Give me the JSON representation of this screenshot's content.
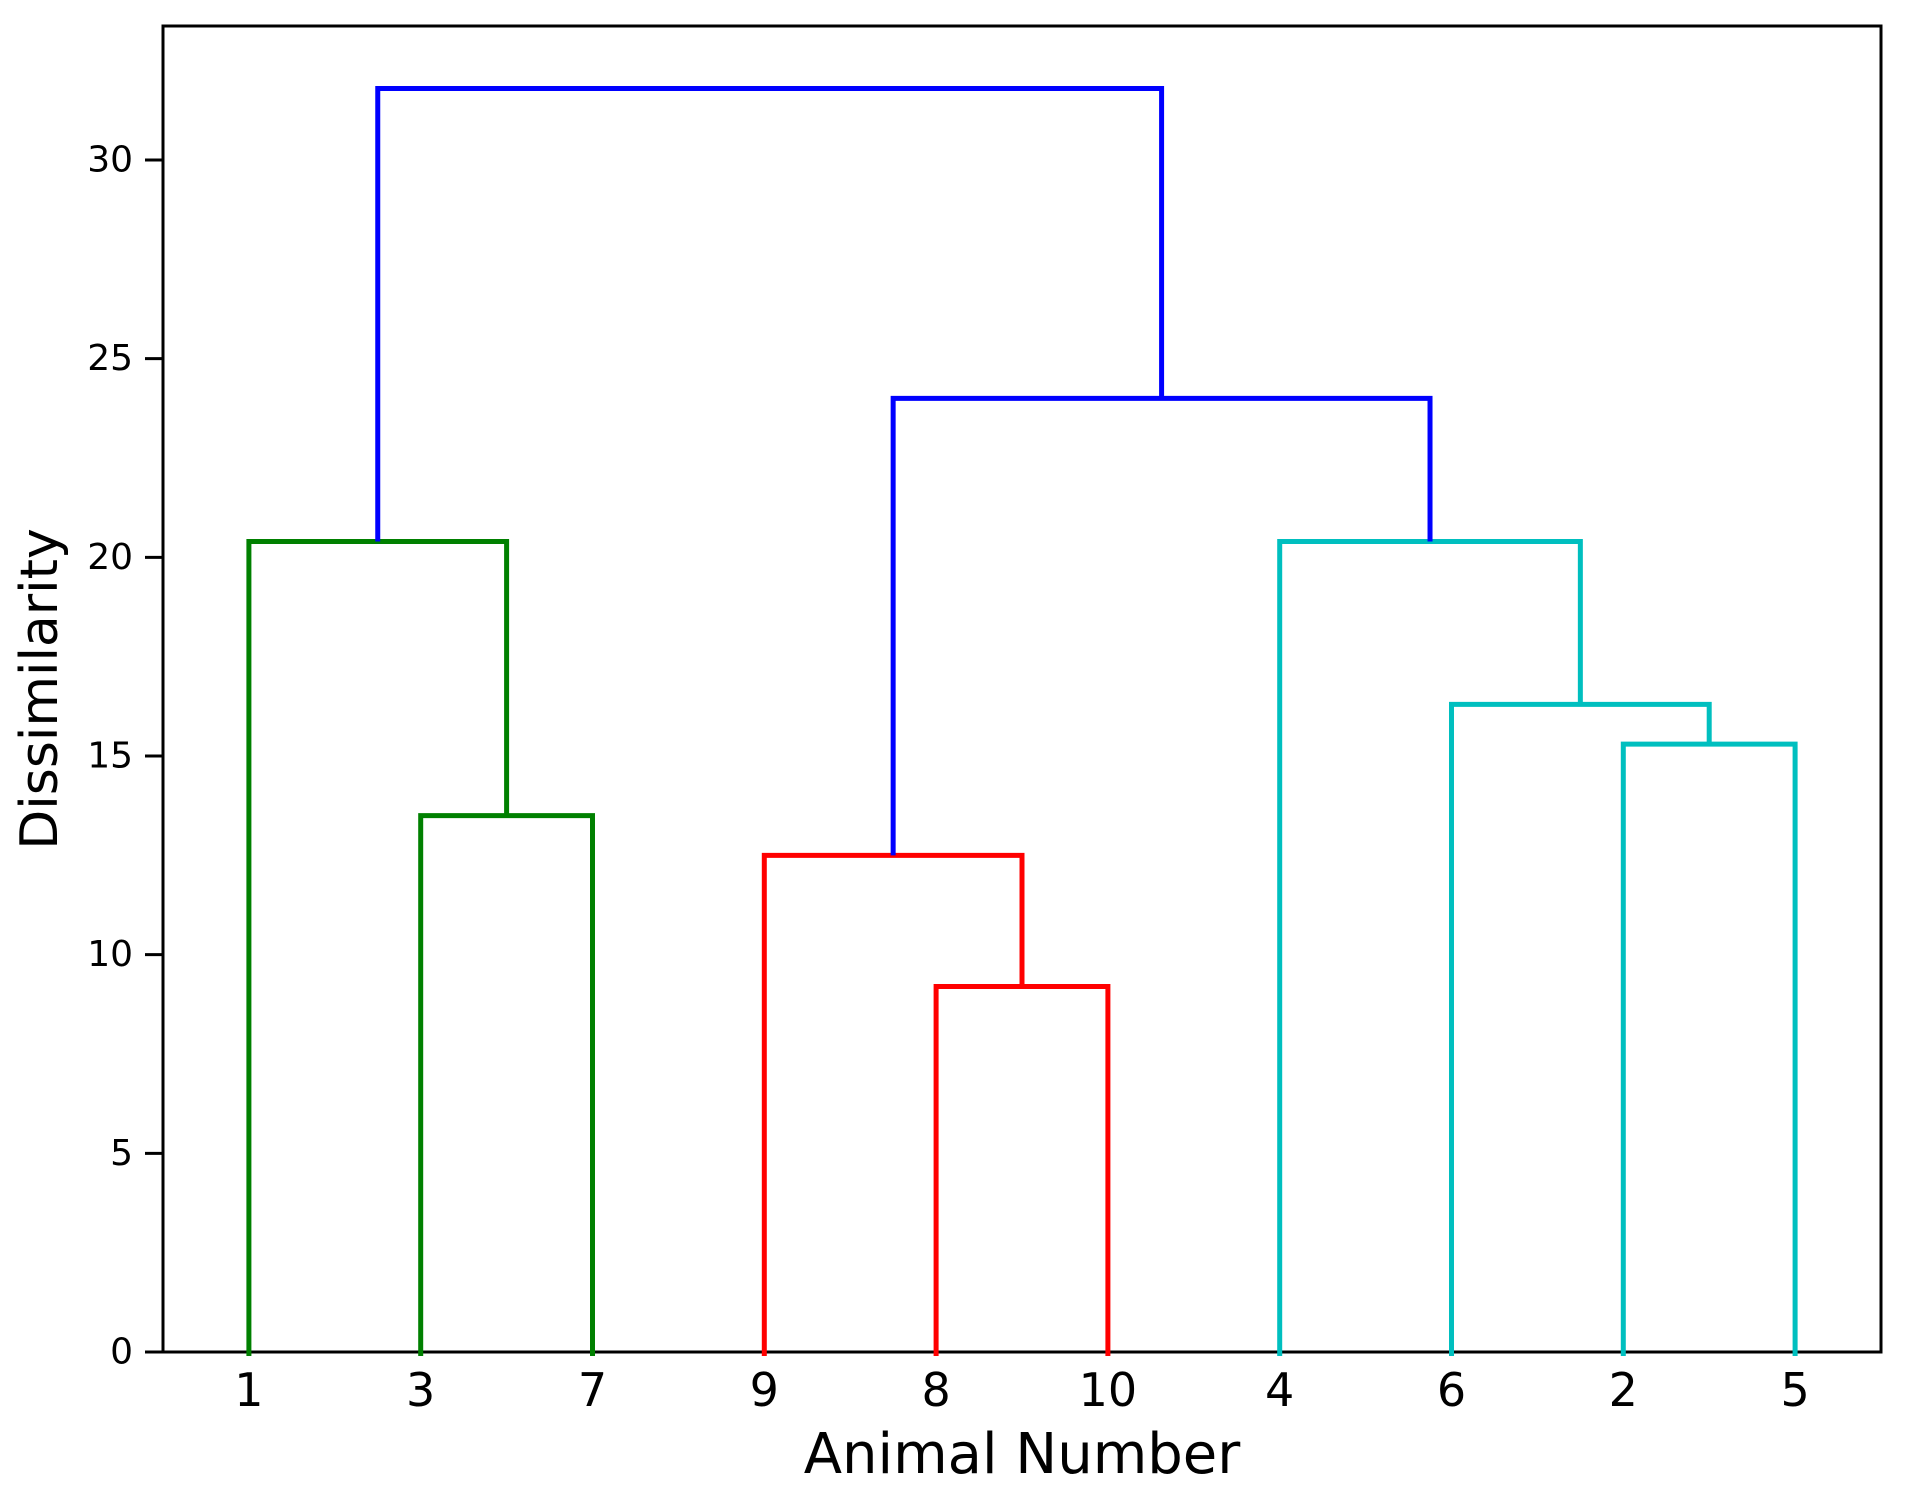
{
  "figure": {
    "background_color": "#ffffff",
    "axis_color": "#000000"
  },
  "chart_data": {
    "type": "dendrogram",
    "title": "",
    "xlabel": "Animal Number",
    "ylabel": "Dissimilarity",
    "leaf_labels": [
      "1",
      "3",
      "7",
      "9",
      "8",
      "10",
      "4",
      "6",
      "2",
      "5"
    ],
    "yticks": [
      0,
      5,
      10,
      15,
      20,
      25,
      30
    ],
    "ylim": [
      0,
      33.4
    ],
    "grid": false,
    "legend": "none",
    "colors": {
      "cluster_green": "#008000",
      "cluster_red": "#ff0000",
      "cluster_cyan": "#00bfbf",
      "above_threshold_blue": "#0000ff"
    },
    "merges": [
      {
        "name": "3+7",
        "left": "leaf:1",
        "right": "leaf:2",
        "height": 13.5,
        "color": "#008000"
      },
      {
        "name": "1+(3,7)",
        "left": "leaf:0",
        "right": "node:0",
        "height": 20.4,
        "color": "#008000"
      },
      {
        "name": "8+10",
        "left": "leaf:4",
        "right": "leaf:5",
        "height": 9.2,
        "color": "#ff0000"
      },
      {
        "name": "9+(8,10)",
        "left": "leaf:3",
        "right": "node:2",
        "height": 12.5,
        "color": "#ff0000"
      },
      {
        "name": "2+5",
        "left": "leaf:8",
        "right": "leaf:9",
        "height": 15.3,
        "color": "#00bfbf"
      },
      {
        "name": "6+(2,5)",
        "left": "leaf:7",
        "right": "node:4",
        "height": 16.3,
        "color": "#00bfbf"
      },
      {
        "name": "4+(6,(2,5))",
        "left": "leaf:6",
        "right": "node:5",
        "height": 20.4,
        "color": "#00bfbf"
      },
      {
        "name": "(9,8,10)+(4,6,2,5)",
        "left": "node:3",
        "right": "node:6",
        "height": 24.0,
        "color": "#0000ff"
      },
      {
        "name": "root",
        "left": "node:1",
        "right": "node:7",
        "height": 31.8,
        "color": "#0000ff"
      }
    ]
  }
}
